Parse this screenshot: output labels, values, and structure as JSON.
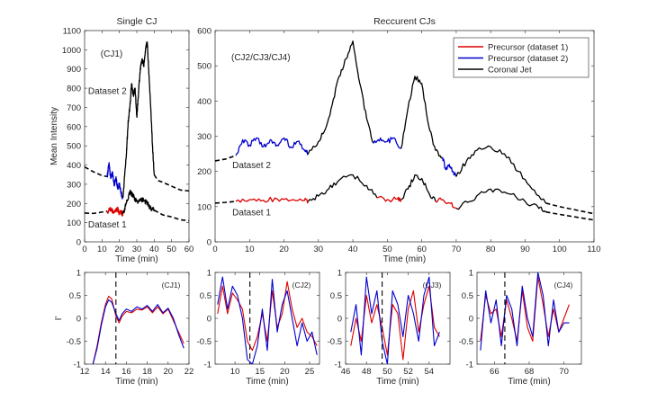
{
  "chart_data": [
    {
      "id": "singlecj",
      "type": "line",
      "title": "Single CJ",
      "annotation": "(CJ1)",
      "xlabel": "Time (min)",
      "ylabel": "Mean Intensity",
      "xlim": [
        0,
        60
      ],
      "ylim": [
        0,
        1100
      ],
      "xticks": [
        0,
        10,
        20,
        30,
        40,
        50,
        60
      ],
      "yticks": [
        0,
        100,
        200,
        300,
        400,
        500,
        600,
        700,
        800,
        900,
        1000,
        1100
      ],
      "texts": [
        {
          "label": "Dataset 2",
          "x": 2,
          "y": 770
        },
        {
          "label": "Dataset 1",
          "x": 2,
          "y": 75
        }
      ],
      "series": [
        {
          "name": "Dataset 2 (outside)",
          "color": "#000000",
          "dash": true,
          "x": [
            0,
            5,
            10,
            13
          ],
          "y": [
            390,
            365,
            345,
            340
          ]
        },
        {
          "name": "Precursor (dataset 2)",
          "color": "#0000cc",
          "x": [
            13,
            14,
            15,
            16,
            17,
            18,
            19,
            20,
            21,
            22
          ],
          "y": [
            340,
            410,
            330,
            360,
            300,
            330,
            280,
            300,
            250,
            230
          ]
        },
        {
          "name": "Coronal Jet",
          "color": "#000000",
          "x": [
            22,
            24,
            25,
            26,
            27,
            28,
            29,
            30,
            31,
            32,
            33,
            34,
            35,
            36,
            37,
            38,
            39,
            40
          ],
          "y": [
            230,
            450,
            620,
            700,
            820,
            760,
            800,
            650,
            780,
            900,
            950,
            920,
            1000,
            1040,
            870,
            700,
            500,
            350
          ]
        },
        {
          "name": "Dataset 2 (outside after)",
          "color": "#000000",
          "dash": true,
          "x": [
            40,
            42,
            45,
            50,
            55,
            60
          ],
          "y": [
            350,
            320,
            310,
            290,
            270,
            265
          ]
        },
        {
          "name": "Dataset 1 (outside)",
          "color": "#000000",
          "dash": true,
          "x": [
            0,
            5,
            10,
            13
          ],
          "y": [
            150,
            148,
            155,
            160
          ]
        },
        {
          "name": "Precursor (dataset 1)",
          "color": "#dd0000",
          "x": [
            13,
            15,
            17,
            19,
            20,
            21,
            22
          ],
          "y": [
            160,
            170,
            155,
            170,
            150,
            155,
            145
          ]
        },
        {
          "name": "Coronal Jet",
          "color": "#000000",
          "x": [
            22,
            24,
            26,
            27,
            28,
            30,
            32,
            34,
            36,
            38,
            40
          ],
          "y": [
            145,
            200,
            260,
            250,
            240,
            210,
            220,
            215,
            200,
            175,
            165
          ]
        },
        {
          "name": "Dataset 1 (outside after)",
          "color": "#000000",
          "dash": true,
          "x": [
            40,
            45,
            50,
            55,
            60
          ],
          "y": [
            165,
            140,
            130,
            115,
            110
          ]
        }
      ]
    },
    {
      "id": "recurrent",
      "type": "line",
      "title": "Reccurent CJs",
      "annotation": "(CJ2/CJ3/CJ4)",
      "xlabel": "Time (min)",
      "xlim": [
        0,
        110
      ],
      "ylim": [
        0,
        600
      ],
      "xticks": [
        0,
        10,
        20,
        30,
        40,
        50,
        60,
        70,
        80,
        90,
        100,
        110
      ],
      "yticks": [
        0,
        100,
        200,
        300,
        400,
        500,
        600
      ],
      "legend": [
        {
          "label": "Precursor (dataset 1)",
          "color": "#dd0000"
        },
        {
          "label": "Precursor (dataset 2)",
          "color": "#0000cc"
        },
        {
          "label": "Coronal Jet",
          "color": "#000000"
        }
      ],
      "texts": [
        {
          "label": "Dataset 2",
          "x": 5,
          "y": 210
        },
        {
          "label": "Dataset 1",
          "x": 5,
          "y": 75
        }
      ],
      "series": [
        {
          "name": "Dataset 2 (outside)",
          "color": "#000000",
          "dash": true,
          "x": [
            0,
            3,
            6
          ],
          "y": [
            230,
            235,
            245
          ]
        },
        {
          "name": "Precursor (dataset 2)",
          "color": "#0000cc",
          "x": [
            6,
            8,
            10,
            12,
            14,
            16,
            18,
            20,
            22,
            24,
            26,
            27
          ],
          "y": [
            245,
            290,
            275,
            295,
            270,
            290,
            275,
            295,
            270,
            285,
            260,
            250
          ]
        },
        {
          "name": "Coronal Jet",
          "color": "#000000",
          "x": [
            27,
            30,
            32,
            34,
            36,
            38,
            40,
            42,
            44,
            46
          ],
          "y": [
            250,
            285,
            320,
            390,
            470,
            520,
            570,
            450,
            350,
            280
          ]
        },
        {
          "name": "Precursor (dataset 2)",
          "color": "#0000cc",
          "x": [
            46,
            48,
            50,
            52,
            54
          ],
          "y": [
            280,
            295,
            285,
            295,
            265
          ]
        },
        {
          "name": "Coronal Jet",
          "color": "#000000",
          "x": [
            54,
            56,
            58,
            60,
            62,
            64,
            66
          ],
          "y": [
            265,
            380,
            470,
            450,
            330,
            260,
            240
          ]
        },
        {
          "name": "Precursor (dataset 2)",
          "color": "#0000cc",
          "x": [
            66,
            67,
            68,
            69,
            70
          ],
          "y": [
            240,
            205,
            220,
            200,
            185
          ]
        },
        {
          "name": "Coronal Jet",
          "color": "#000000",
          "x": [
            70,
            73,
            76,
            80,
            84,
            88,
            92,
            96
          ],
          "y": [
            185,
            230,
            260,
            270,
            250,
            200,
            150,
            110
          ]
        },
        {
          "name": "Dataset 2 (outside after)",
          "color": "#000000",
          "dash": true,
          "x": [
            96,
            100,
            105,
            110
          ],
          "y": [
            110,
            100,
            90,
            80
          ]
        },
        {
          "name": "Dataset 1 (outside)",
          "color": "#000000",
          "dash": true,
          "x": [
            0,
            3,
            6
          ],
          "y": [
            110,
            112,
            115
          ]
        },
        {
          "name": "Precursor (dataset 1)",
          "color": "#dd0000",
          "x": [
            6,
            10,
            14,
            18,
            22,
            26,
            27
          ],
          "y": [
            115,
            120,
            118,
            122,
            118,
            118,
            115
          ]
        },
        {
          "name": "Coronal Jet",
          "color": "#000000",
          "x": [
            27,
            30,
            33,
            36,
            40,
            44,
            47
          ],
          "y": [
            115,
            130,
            150,
            175,
            190,
            160,
            125
          ]
        },
        {
          "name": "Precursor (dataset 1)",
          "color": "#dd0000",
          "x": [
            47,
            50,
            53,
            54
          ],
          "y": [
            125,
            120,
            122,
            120
          ]
        },
        {
          "name": "Coronal Jet",
          "color": "#000000",
          "x": [
            54,
            56,
            58,
            60,
            62,
            64
          ],
          "y": [
            120,
            150,
            190,
            180,
            140,
            115
          ]
        },
        {
          "name": "Precursor (dataset 1)",
          "color": "#dd0000",
          "x": [
            64,
            66,
            68,
            70
          ],
          "y": [
            115,
            120,
            110,
            95
          ]
        },
        {
          "name": "Coronal Jet",
          "color": "#000000",
          "x": [
            70,
            74,
            78,
            82,
            86,
            90,
            94,
            96
          ],
          "y": [
            95,
            115,
            140,
            150,
            135,
            115,
            95,
            85
          ]
        },
        {
          "name": "Dataset 1 (outside after)",
          "color": "#000000",
          "dash": true,
          "x": [
            96,
            100,
            105,
            110
          ],
          "y": [
            85,
            78,
            70,
            62
          ]
        }
      ]
    },
    {
      "id": "cj1",
      "type": "line",
      "annotation": "(CJ1)",
      "xlabel": "Time (min)",
      "ylabel": "I'",
      "xlim": [
        12,
        22
      ],
      "ylim": [
        -1,
        1
      ],
      "xticks": [
        12,
        14,
        16,
        18,
        20,
        22
      ],
      "yticks": [
        -1,
        -0.5,
        0,
        0.5,
        1
      ],
      "vline": 15,
      "series": [
        {
          "name": "Precursor (dataset 1)",
          "color": "#dd0000",
          "x": [
            12.8,
            13.2,
            13.6,
            14.0,
            14.3,
            14.6,
            15.0,
            15.3,
            15.6,
            16.0,
            16.5,
            17.0,
            17.5,
            18.0,
            18.5,
            19.0,
            19.5,
            20.0,
            20.5,
            21.0,
            21.5
          ],
          "y": [
            -1,
            -0.6,
            -0.1,
            0.3,
            0.48,
            0.42,
            0.05,
            -0.1,
            0.05,
            0.15,
            0.12,
            0.2,
            0.18,
            0.25,
            0.12,
            0.25,
            0.1,
            0.2,
            -0.05,
            -0.3,
            -0.55
          ]
        },
        {
          "name": "Precursor (dataset 2)",
          "color": "#0000cc",
          "x": [
            12.8,
            13.2,
            13.6,
            14.0,
            14.3,
            14.6,
            15.0,
            15.3,
            15.6,
            16.0,
            16.5,
            17.0,
            17.5,
            18.0,
            18.5,
            19.0,
            19.5,
            20.0,
            20.5,
            21.0,
            21.5
          ],
          "y": [
            -1,
            -0.65,
            -0.15,
            0.25,
            0.4,
            0.35,
            0.1,
            -0.05,
            0.1,
            0.2,
            0.15,
            0.25,
            0.2,
            0.28,
            0.15,
            0.3,
            0.12,
            0.22,
            0.0,
            -0.35,
            -0.65
          ]
        }
      ]
    },
    {
      "id": "cj2",
      "type": "line",
      "annotation": "(CJ2)",
      "xlabel": "Time (min)",
      "xlim": [
        6,
        27
      ],
      "ylim": [
        -1,
        1
      ],
      "xticks": [
        10,
        15,
        20,
        25
      ],
      "yticks": [
        -1,
        -0.5,
        0,
        0.5,
        1
      ],
      "vline": 13,
      "series": [
        {
          "name": "Precursor (dataset 1)",
          "color": "#dd0000",
          "x": [
            6.5,
            7.5,
            8.5,
            9.5,
            10.5,
            11.5,
            12.5,
            13.5,
            14.5,
            15.5,
            16.5,
            17.5,
            18.5,
            19.5,
            20.5,
            21.5,
            22.5,
            23.5,
            24.5,
            25.5,
            26.5
          ],
          "y": [
            0.1,
            0.7,
            0.1,
            0.55,
            0.4,
            0.2,
            -0.5,
            -0.7,
            -0.4,
            0.1,
            -0.5,
            0.6,
            -0.2,
            0.1,
            0.8,
            0.2,
            -0.2,
            0.0,
            -0.3,
            -0.4,
            -0.6
          ]
        },
        {
          "name": "Precursor (dataset 2)",
          "color": "#0000cc",
          "x": [
            6.5,
            7.5,
            8.5,
            9.5,
            10.5,
            11.5,
            12.5,
            13.5,
            14.5,
            15.5,
            16.5,
            17.5,
            18.5,
            19.5,
            20.5,
            21.5,
            22.5,
            23.5,
            24.5,
            25.5,
            26.5
          ],
          "y": [
            0.3,
            0.9,
            0.2,
            0.7,
            0.5,
            0.0,
            -0.9,
            -1.0,
            -0.6,
            0.2,
            -0.7,
            0.85,
            -0.3,
            0.3,
            0.6,
            0.0,
            -0.6,
            -0.1,
            -0.5,
            -0.3,
            -0.8
          ]
        }
      ]
    },
    {
      "id": "cj3",
      "type": "line",
      "annotation": "(CJ3)",
      "xlabel": "Time (min)",
      "xlim": [
        46,
        56
      ],
      "ylim": [
        -1,
        1
      ],
      "xticks": [
        46,
        48,
        50,
        52,
        54
      ],
      "yticks": [
        -1,
        -0.5,
        0,
        0.5,
        1
      ],
      "vline": 49.5,
      "series": [
        {
          "name": "Precursor (dataset 1)",
          "color": "#dd0000",
          "x": [
            46.5,
            47.0,
            47.5,
            48.0,
            48.5,
            49.0,
            49.5,
            50.0,
            50.5,
            51.0,
            51.5,
            52.0,
            52.5,
            53.0,
            53.5,
            54.0,
            54.5,
            55.0
          ],
          "y": [
            -0.6,
            0.0,
            -0.5,
            0.5,
            -0.1,
            0.3,
            -0.2,
            -0.8,
            0.3,
            0.1,
            -0.9,
            0.2,
            0.6,
            -0.3,
            0.3,
            0.7,
            -0.2,
            -0.4
          ]
        },
        {
          "name": "Precursor (dataset 2)",
          "color": "#0000cc",
          "x": [
            46.5,
            47.0,
            47.5,
            48.0,
            48.5,
            49.0,
            49.5,
            50.0,
            50.5,
            51.0,
            51.5,
            52.0,
            52.5,
            53.0,
            53.5,
            54.0,
            54.5,
            55.0
          ],
          "y": [
            -0.3,
            0.3,
            -0.8,
            0.9,
            0.1,
            0.6,
            -0.5,
            -1.0,
            0.6,
            0.3,
            -0.4,
            0.5,
            0.1,
            -0.5,
            0.5,
            0.9,
            -0.6,
            -0.3
          ]
        }
      ]
    },
    {
      "id": "cj4",
      "type": "line",
      "annotation": "(CJ4)",
      "xlabel": "Time (min)",
      "xlim": [
        65,
        71
      ],
      "ylim": [
        -1,
        1
      ],
      "xticks": [
        66,
        68,
        70
      ],
      "yticks": [
        -1,
        -0.5,
        0,
        0.5,
        1
      ],
      "vline": 66.6,
      "series": [
        {
          "name": "Precursor (dataset 1)",
          "color": "#dd0000",
          "x": [
            65.2,
            65.5,
            65.8,
            66.1,
            66.4,
            66.7,
            67.0,
            67.3,
            67.6,
            67.9,
            68.2,
            68.5,
            68.8,
            69.1,
            69.4,
            69.7,
            70.0,
            70.3
          ],
          "y": [
            -0.5,
            0.5,
            0.1,
            0.2,
            -0.4,
            0.4,
            0.0,
            -0.5,
            0.6,
            -0.2,
            -0.5,
            0.9,
            0.3,
            -0.4,
            0.2,
            -0.3,
            0.0,
            0.3
          ]
        },
        {
          "name": "Precursor (dataset 2)",
          "color": "#0000cc",
          "x": [
            65.2,
            65.5,
            65.8,
            66.1,
            66.4,
            66.7,
            67.0,
            67.3,
            67.6,
            67.9,
            68.2,
            68.5,
            68.8,
            69.1,
            69.4,
            69.7,
            70.0,
            70.3
          ],
          "y": [
            -0.7,
            0.6,
            -0.1,
            0.4,
            -0.6,
            0.5,
            0.2,
            -0.6,
            0.7,
            0.0,
            -0.4,
            1.0,
            0.5,
            -0.6,
            0.4,
            -0.3,
            -0.1,
            -0.1
          ]
        }
      ]
    }
  ]
}
